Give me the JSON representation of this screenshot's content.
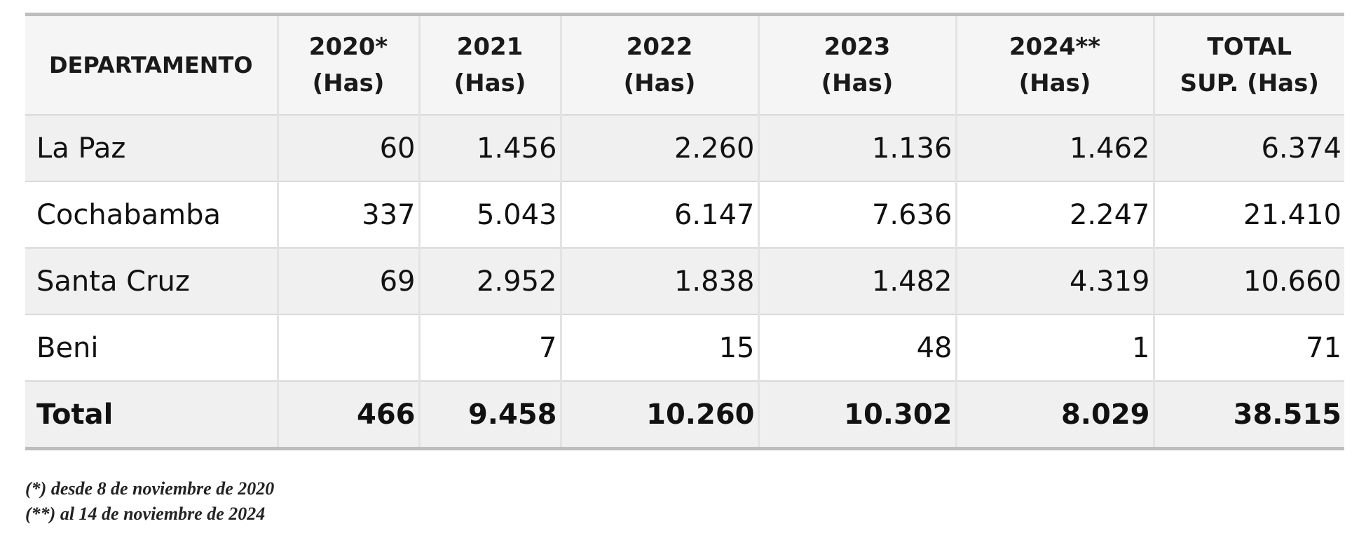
{
  "table": {
    "headers": [
      {
        "line1": "DEPARTAMENTO",
        "line2": ""
      },
      {
        "line1": "2020*",
        "line2": "(Has)"
      },
      {
        "line1": "2021",
        "line2": "(Has)"
      },
      {
        "line1": "2022",
        "line2": "(Has)"
      },
      {
        "line1": "2023",
        "line2": "(Has)"
      },
      {
        "line1": "2024**",
        "line2": "(Has)"
      },
      {
        "line1": "TOTAL",
        "line2": "SUP. (Has)"
      }
    ],
    "rows": [
      [
        "La Paz",
        "60",
        "1.456",
        "2.260",
        "1.136",
        "1.462",
        "6.374"
      ],
      [
        "Cochabamba",
        "337",
        "5.043",
        "6.147",
        "7.636",
        "2.247",
        "21.410"
      ],
      [
        "Santa Cruz",
        "69",
        "2.952",
        "1.838",
        "1.482",
        "4.319",
        "10.660"
      ],
      [
        "Beni",
        "",
        "7",
        "15",
        "48",
        "1",
        "71"
      ]
    ],
    "total": [
      "Total",
      "466",
      "9.458",
      "10.260",
      "10.302",
      "8.029",
      "38.515"
    ]
  },
  "footnotes": [
    "(*) desde 8 de noviembre de 2020",
    "(**) al 14 de noviembre de 2024"
  ]
}
